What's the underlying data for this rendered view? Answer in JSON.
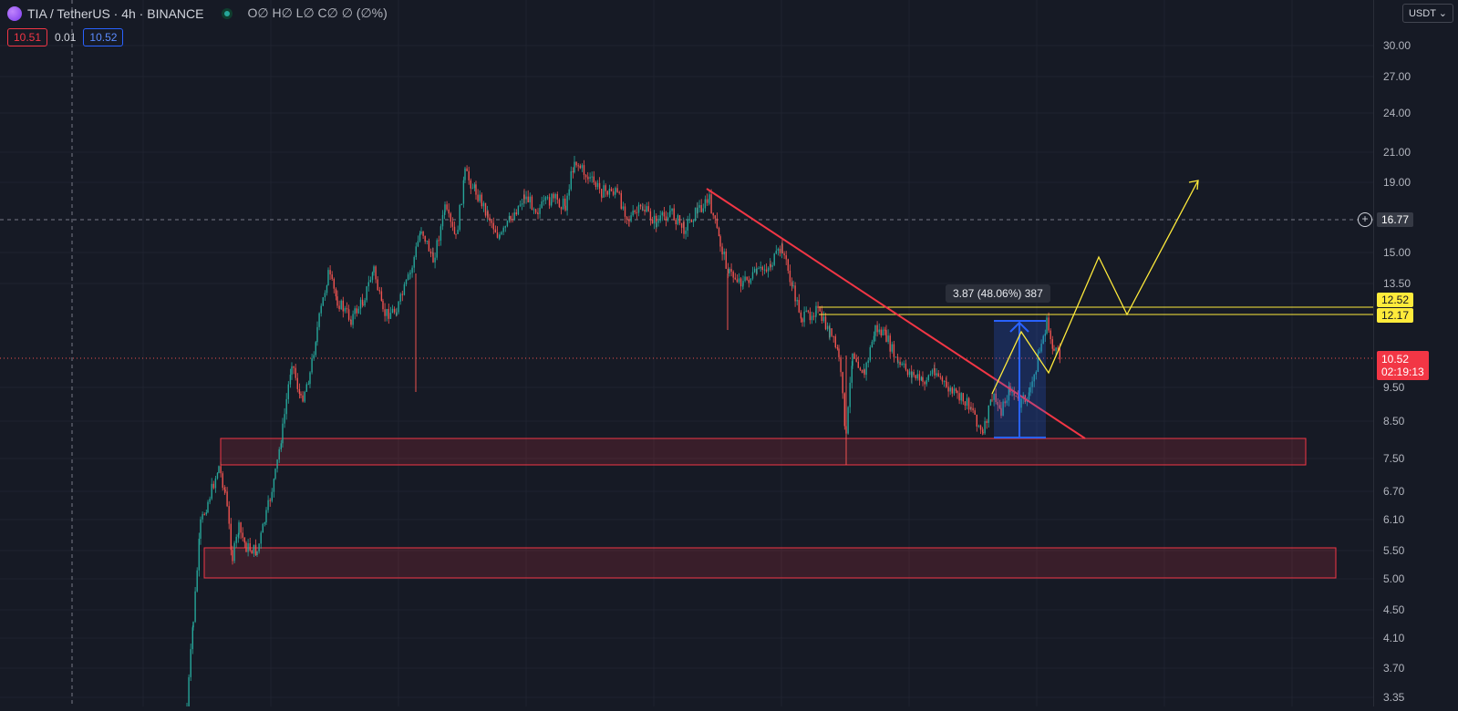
{
  "legend": {
    "symbol": "TIA / TetherUS · 4h · BINANCE",
    "ohlc": "O∅ H∅ L∅ C∅ ∅ (∅%)"
  },
  "quotes": {
    "sell": "10.51",
    "spread": "0.01",
    "buy": "10.52"
  },
  "currency": "USDT ⌄",
  "price_scale": {
    "ticks": [
      "30.00",
      "27.00",
      "24.00",
      "21.00",
      "19.00",
      "15.00",
      "13.50",
      "9.50",
      "8.50",
      "7.50",
      "6.70",
      "6.10",
      "5.50",
      "5.00",
      "4.50",
      "4.10",
      "3.70",
      "3.35"
    ],
    "crosshair_price": "16.77",
    "level_labels": [
      "12.52",
      "12.17"
    ],
    "last_price": "10.52",
    "countdown": "02:19:13"
  },
  "measure": {
    "label": "3.87 (48.06%) 387"
  },
  "colors": {
    "background": "#161a25",
    "up": "#26a69a",
    "down": "#ef5350",
    "trendline": "#f23645",
    "level": "#ffeb3b",
    "measure": "#2962ff"
  }
}
